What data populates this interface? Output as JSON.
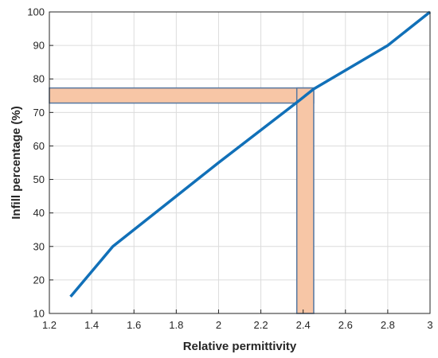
{
  "chart_data": {
    "type": "line",
    "title": "",
    "xlabel": "Relative permittivity",
    "ylabel": "Infill percentage (%)",
    "xlim": [
      1.2,
      3.0
    ],
    "ylim": [
      10,
      100
    ],
    "grid": true,
    "x_ticks": [
      "1.2",
      "1.4",
      "1.6",
      "1.8",
      "2",
      "2.2",
      "2.4",
      "2.6",
      "2.8",
      "3"
    ],
    "y_ticks": [
      "10",
      "20",
      "30",
      "40",
      "50",
      "60",
      "70",
      "80",
      "90",
      "100"
    ],
    "series": [
      {
        "color": "#1170b8",
        "x": [
          1.3,
          1.5,
          2.0,
          2.37,
          2.45,
          2.8,
          3.0
        ],
        "y": [
          15,
          30,
          55,
          73,
          77,
          90,
          100
        ]
      }
    ],
    "highlight_bands": [
      {
        "axis": "y",
        "from": 72.8,
        "to": 77.3,
        "x_from": 1.2,
        "x_to": 2.45,
        "fill": "#f7c6a6",
        "stroke": "#5577a0"
      },
      {
        "axis": "x",
        "from": 2.37,
        "to": 2.45,
        "y_from": 10,
        "y_to": 77.3,
        "fill": "#f7c6a6",
        "stroke": "#5577a0"
      }
    ]
  }
}
